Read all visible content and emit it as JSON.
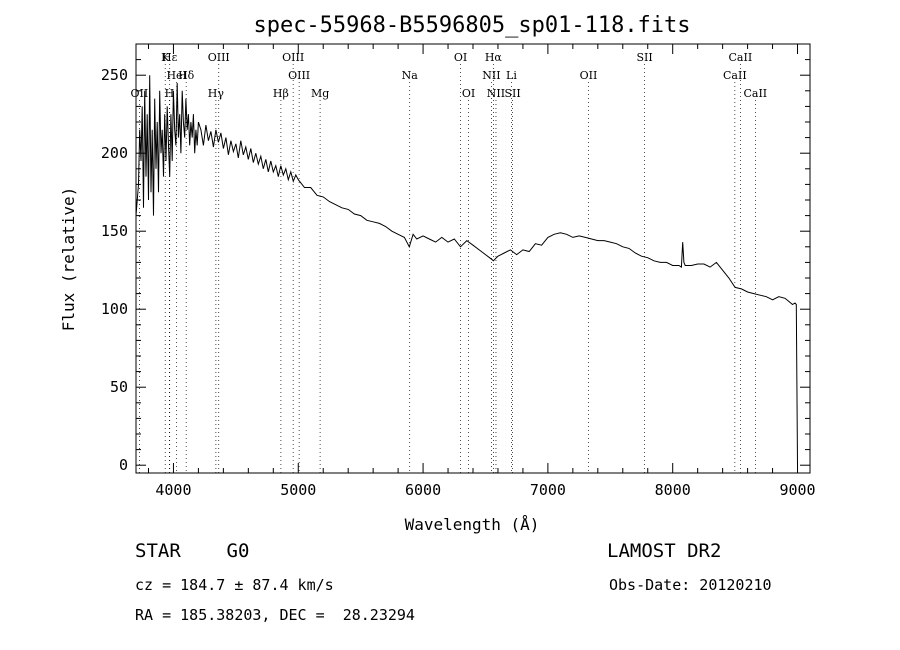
{
  "chart_data": {
    "type": "line",
    "title": "spec-55968-B5596805_sp01-118.fits",
    "xlabel": "Wavelength (Å)",
    "ylabel": "Flux (relative)",
    "xlim": [
      3700,
      9100
    ],
    "ylim": [
      -5,
      270
    ],
    "xticks": [
      4000,
      5000,
      6000,
      7000,
      8000,
      9000
    ],
    "yticks": [
      0,
      50,
      100,
      150,
      200,
      250
    ],
    "grid": false,
    "series": [
      {
        "x": [
          3700,
          3720,
          3730,
          3740,
          3750,
          3760,
          3770,
          3780,
          3790,
          3800,
          3810,
          3820,
          3830,
          3840,
          3850,
          3860,
          3870,
          3880,
          3890,
          3900,
          3910,
          3920,
          3930,
          3940,
          3950,
          3960,
          3970,
          3980,
          3990,
          4000,
          4010,
          4020,
          4030,
          4040,
          4050,
          4060,
          4070,
          4080,
          4090,
          4100,
          4110,
          4120,
          4130,
          4140,
          4150,
          4160,
          4170,
          4180,
          4190,
          4200,
          4220,
          4240,
          4260,
          4280,
          4300,
          4320,
          4340,
          4360,
          4380,
          4400,
          4420,
          4440,
          4460,
          4480,
          4500,
          4520,
          4540,
          4560,
          4580,
          4600,
          4620,
          4640,
          4660,
          4680,
          4700,
          4720,
          4740,
          4760,
          4780,
          4800,
          4820,
          4840,
          4860,
          4880,
          4900,
          4920,
          4940,
          4960,
          4980,
          5000,
          5050,
          5100,
          5150,
          5200,
          5250,
          5300,
          5350,
          5400,
          5450,
          5500,
          5550,
          5600,
          5650,
          5700,
          5750,
          5800,
          5850,
          5890,
          5920,
          5950,
          6000,
          6050,
          6100,
          6150,
          6200,
          6250,
          6300,
          6350,
          6400,
          6450,
          6500,
          6550,
          6563,
          6600,
          6650,
          6700,
          6750,
          6800,
          6850,
          6900,
          6950,
          7000,
          7050,
          7100,
          7150,
          7200,
          7250,
          7300,
          7350,
          7400,
          7450,
          7500,
          7550,
          7600,
          7650,
          7700,
          7750,
          7800,
          7850,
          7900,
          7950,
          8000,
          8050,
          8070,
          8080,
          8090,
          8100,
          8150,
          8200,
          8250,
          8300,
          8350,
          8400,
          8450,
          8500,
          8550,
          8600,
          8650,
          8700,
          8750,
          8800,
          8850,
          8900,
          8930,
          8960,
          8980,
          8990,
          9000
        ],
        "y": [
          160,
          180,
          215,
          195,
          230,
          165,
          240,
          185,
          225,
          170,
          250,
          175,
          215,
          160,
          235,
          190,
          220,
          175,
          240,
          200,
          215,
          185,
          225,
          195,
          230,
          205,
          185,
          225,
          195,
          240,
          215,
          205,
          245,
          210,
          225,
          200,
          240,
          220,
          210,
          235,
          215,
          225,
          205,
          220,
          210,
          225,
          200,
          215,
          205,
          220,
          215,
          205,
          218,
          208,
          214,
          204,
          215,
          207,
          213,
          203,
          210,
          199,
          208,
          201,
          206,
          197,
          208,
          199,
          204,
          196,
          203,
          194,
          200,
          193,
          198,
          190,
          196,
          188,
          195,
          188,
          192,
          185,
          192,
          186,
          190,
          183,
          188,
          182,
          186,
          183,
          178,
          178,
          173,
          172,
          169,
          167,
          165,
          164,
          161,
          160,
          157,
          156,
          155,
          153,
          150,
          148,
          146,
          140,
          148,
          145,
          147,
          145,
          143,
          146,
          143,
          145,
          140,
          144,
          141,
          138,
          135,
          132,
          131,
          134,
          136,
          138,
          135,
          138,
          137,
          142,
          141,
          146,
          148,
          149,
          148,
          146,
          147,
          146,
          145,
          144,
          144,
          143,
          142,
          140,
          139,
          136,
          134,
          133,
          131,
          130,
          130,
          128,
          128,
          127,
          143,
          130,
          128,
          128,
          129,
          129,
          127,
          130,
          125,
          120,
          114,
          113,
          111,
          110,
          109,
          108,
          106,
          108,
          107,
          105,
          103,
          104,
          103,
          0
        ]
      }
    ],
    "line_markers": [
      {
        "label": "Hε",
        "wavelength": 3970,
        "row": 1
      },
      {
        "label": "K",
        "wavelength": 3934,
        "row": 1
      },
      {
        "label": "HeI",
        "wavelength": 4026,
        "row": 2
      },
      {
        "label": "Hδ",
        "wavelength": 4102,
        "row": 2
      },
      {
        "label": "OII",
        "wavelength": 3727,
        "row": 3
      },
      {
        "label": "Hγ",
        "wavelength": 4340,
        "row": 3
      },
      {
        "label": "H",
        "wavelength": 3968,
        "row": 3
      },
      {
        "label": "OIII",
        "wavelength": 4363,
        "row": 1
      },
      {
        "label": "OIII",
        "wavelength": 4959,
        "row": 1
      },
      {
        "label": "OIII",
        "wavelength": 5007,
        "row": 2
      },
      {
        "label": "Hβ",
        "wavelength": 4861,
        "row": 3
      },
      {
        "label": "Mg",
        "wavelength": 5175,
        "row": 3
      },
      {
        "label": "Na",
        "wavelength": 5893,
        "row": 2
      },
      {
        "label": "OI",
        "wavelength": 6300,
        "row": 1
      },
      {
        "label": "OI",
        "wavelength": 6364,
        "row": 3
      },
      {
        "label": "Hα",
        "wavelength": 6563,
        "row": 1
      },
      {
        "label": "NII",
        "wavelength": 6548,
        "row": 2
      },
      {
        "label": "Li",
        "wavelength": 6708,
        "row": 2
      },
      {
        "label": "NII",
        "wavelength": 6584,
        "row": 3
      },
      {
        "label": "SII",
        "wavelength": 6717,
        "row": 3
      },
      {
        "label": "OII",
        "wavelength": 7325,
        "row": 2
      },
      {
        "label": "SII",
        "wavelength": 7775,
        "row": 1
      },
      {
        "label": "CaII",
        "wavelength": 8542,
        "row": 1
      },
      {
        "label": "CaII",
        "wavelength": 8498,
        "row": 2
      },
      {
        "label": "CaII",
        "wavelength": 8662,
        "row": 3
      }
    ]
  },
  "info": {
    "class_line": "STAR    G0",
    "survey": "LAMOST DR2",
    "cz_line": "cz = 184.7 ± 87.4 km/s",
    "obs_date": "Obs-Date: 20120210",
    "radec_line": "RA = 185.38203, DEC =  28.23294"
  }
}
